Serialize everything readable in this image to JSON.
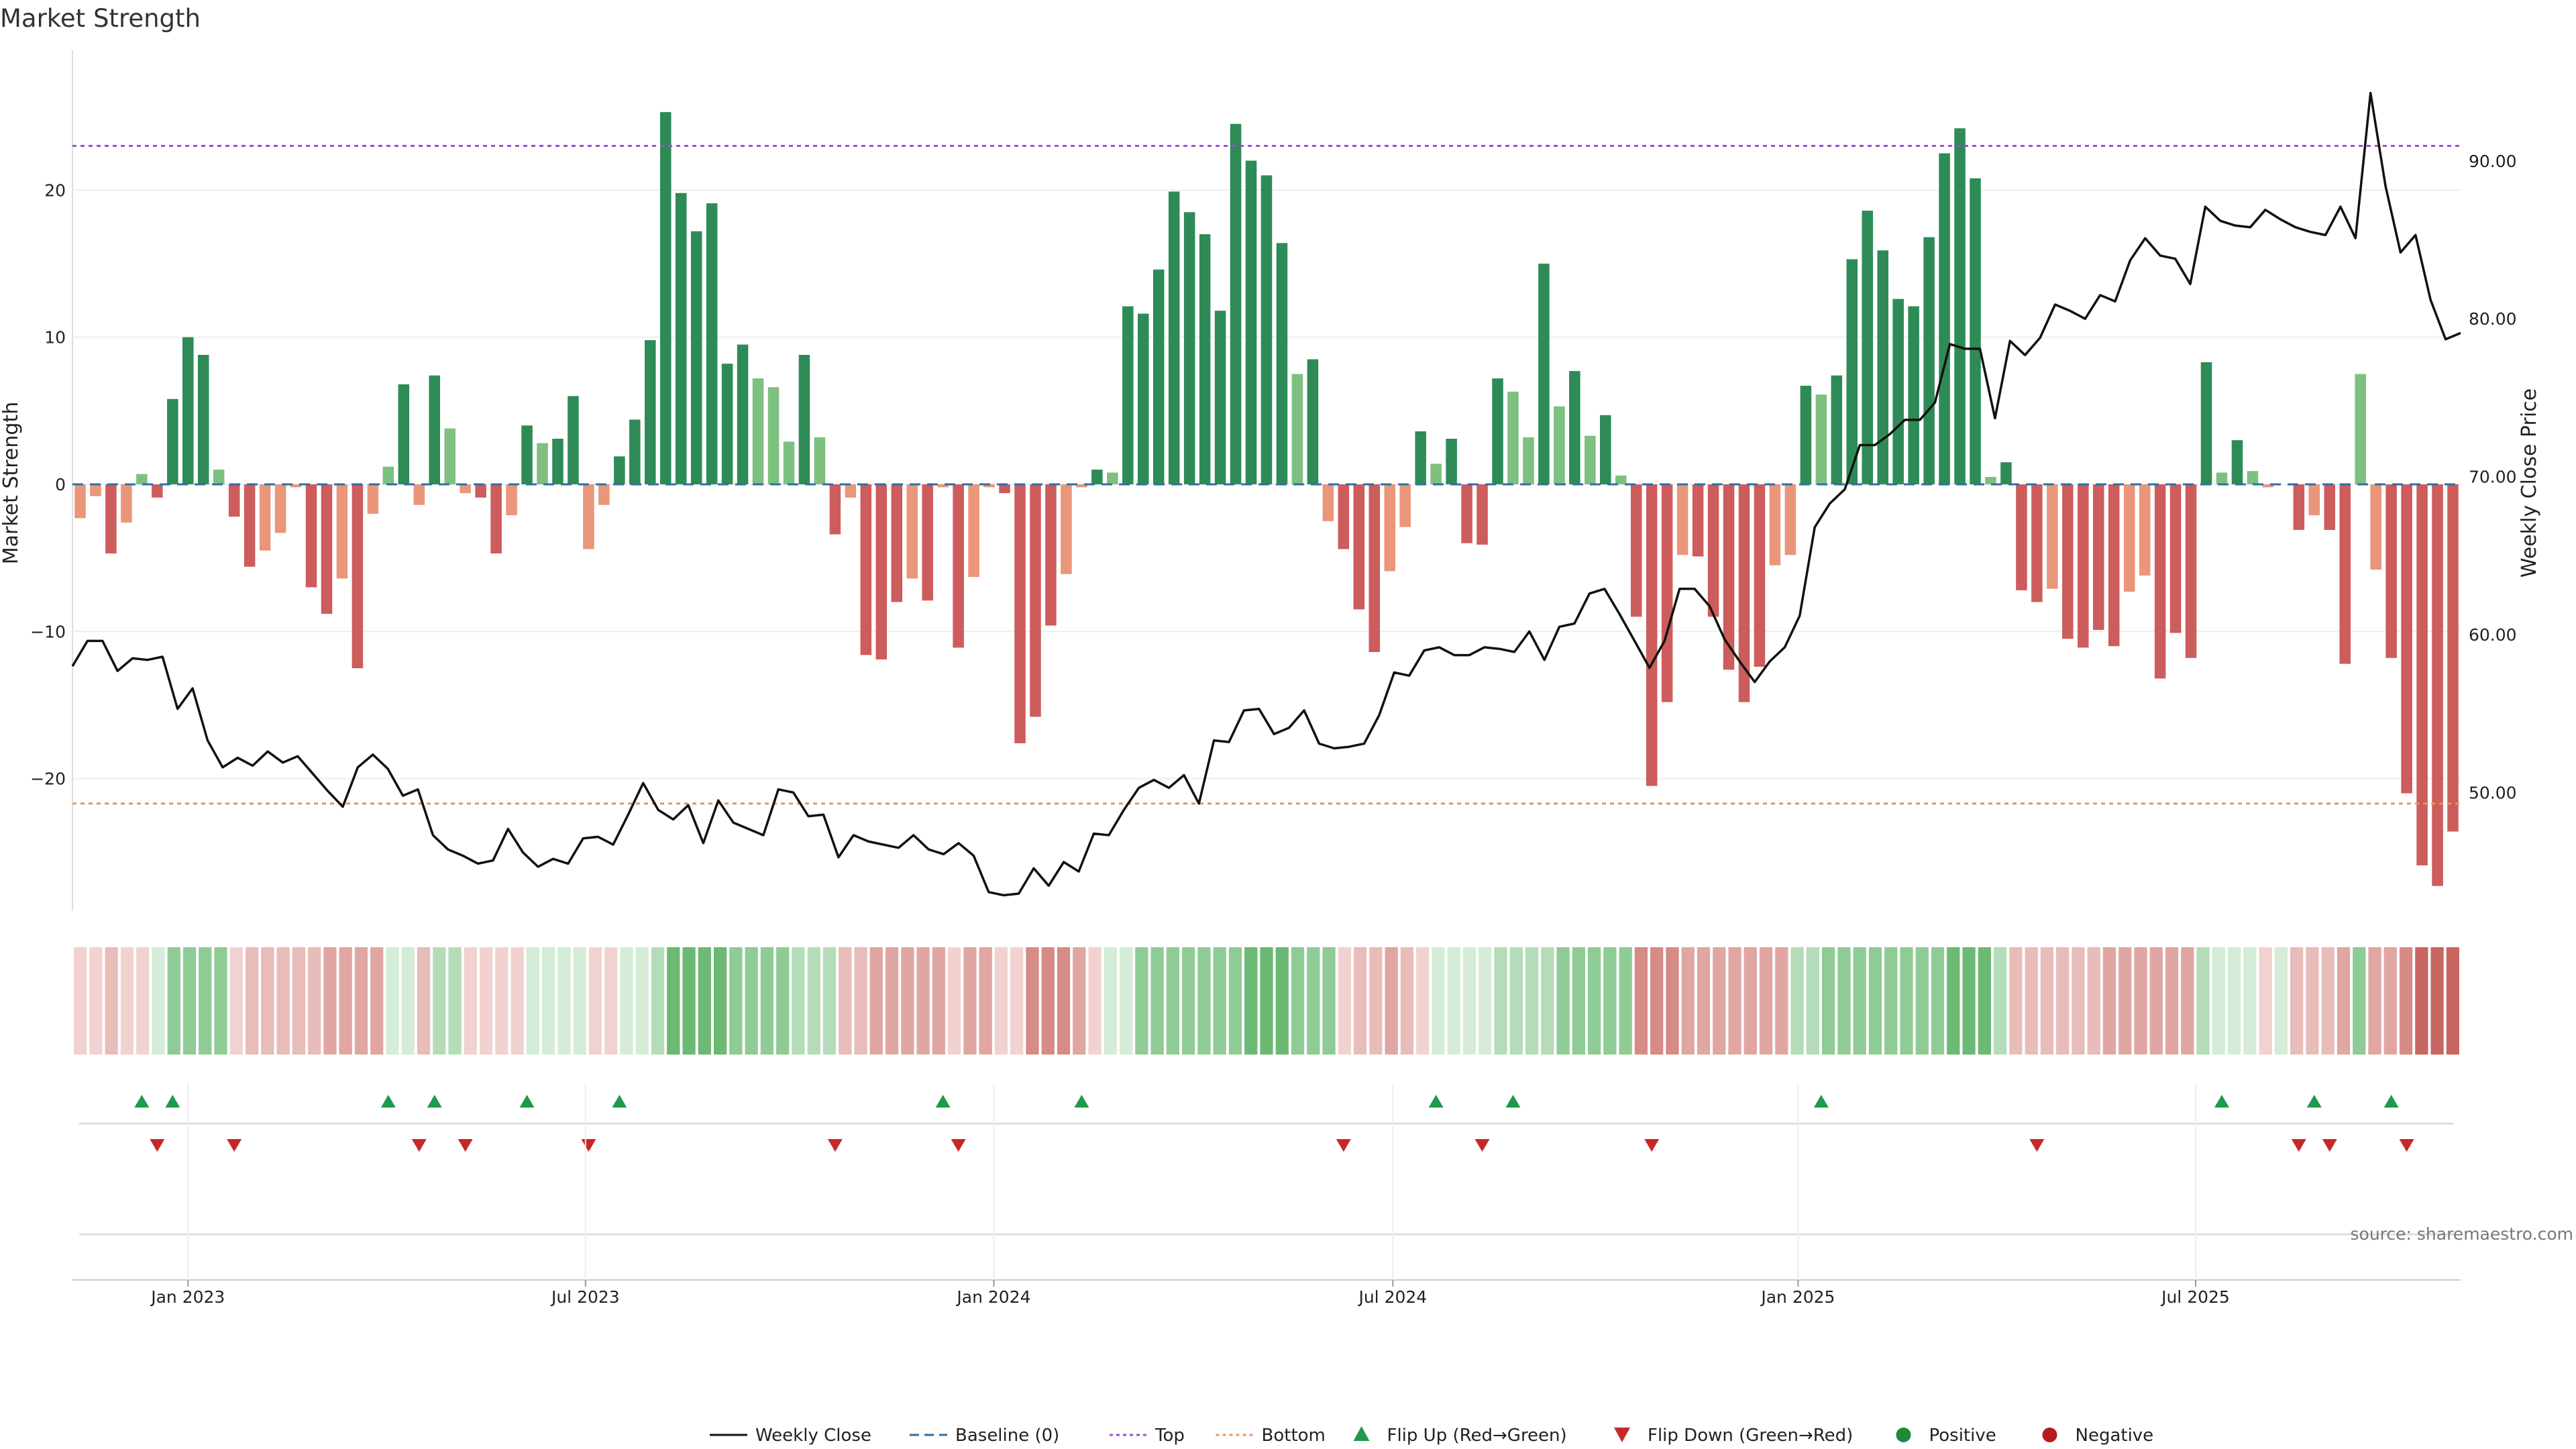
{
  "chart_data": {
    "type": "bar",
    "title": "Market Strength",
    "ylabel": "Market Strength",
    "y2label": "Weekly Close Price",
    "source": "source: sharemaestro.com",
    "ylim": [
      -29,
      29.5
    ],
    "y2lim": [
      42.5,
      97
    ],
    "yticks": [
      -20,
      -10,
      0,
      10,
      20
    ],
    "y2ticks": [
      "50.00",
      "60.00",
      "70.00",
      "80.00",
      "90.00"
    ],
    "y2tick_values": [
      50,
      60,
      70,
      80,
      90
    ],
    "top_line": 23,
    "bottom_line": -21.7,
    "x_tick_labels": [
      "Jan 2023",
      "Jul 2023",
      "Jan 2024",
      "Jul 2024",
      "Jan 2025",
      "Jul 2025"
    ],
    "x_tick_index": [
      7.5,
      33.3,
      59.8,
      85.7,
      112,
      137.8
    ],
    "bar_values": [
      -2.3,
      -0.8,
      -4.7,
      -2.6,
      0.7,
      -0.9,
      5.8,
      10,
      8.8,
      1,
      -2.2,
      -5.6,
      -4.5,
      -3.3,
      -0.2,
      -7,
      -8.8,
      -6.4,
      -12.5,
      -2,
      1.2,
      6.8,
      -1.4,
      7.4,
      3.8,
      -0.6,
      -0.9,
      -4.7,
      -2.1,
      4,
      2.8,
      3.1,
      6,
      -4.4,
      -1.4,
      1.9,
      4.4,
      9.8,
      25.3,
      19.8,
      17.2,
      19.1,
      8.2,
      9.5,
      7.2,
      6.6,
      2.9,
      8.8,
      3.2,
      -3.4,
      -0.9,
      -11.6,
      -11.9,
      -8,
      -6.4,
      -7.9,
      -0.2,
      -11.1,
      -6.3,
      -0.2,
      -0.6,
      -17.6,
      -15.8,
      -9.6,
      -6.1,
      -0.2,
      1,
      0.8,
      12.1,
      11.6,
      14.6,
      19.9,
      18.5,
      17,
      11.8,
      24.5,
      22,
      21,
      16.4,
      7.5,
      8.5,
      -2.5,
      -4.4,
      -8.5,
      -11.4,
      -5.9,
      -2.9,
      3.6,
      1.4,
      3.1,
      -4,
      -4.1,
      7.2,
      6.3,
      3.2,
      15,
      5.3,
      7.7,
      3.3,
      4.7,
      0.6,
      -9,
      -20.5,
      -14.8,
      -4.8,
      -4.9,
      -9,
      -12.6,
      -14.8,
      -12.4,
      -5.5,
      -4.8,
      6.7,
      6.1,
      7.4,
      15.3,
      18.6,
      15.9,
      12.6,
      12.1,
      16.8,
      22.5,
      24.2,
      20.8,
      0.5,
      1.5,
      -7.2,
      -8,
      -7.1,
      -10.5,
      -11.1,
      -9.9,
      -11,
      -7.3,
      -6.2,
      -13.2,
      -10.1,
      -11.8,
      8.3,
      0.8,
      3,
      0.9,
      -0.2,
      0,
      -3.1,
      -2.1,
      -3.1,
      -12.2,
      7.5,
      -5.8,
      -11.8,
      -21,
      -25.9,
      -27.3,
      -23.6
    ],
    "series": [
      {
        "name": "Weekly Close",
        "values": [
          58,
          59.6,
          59.6,
          57.7,
          58.5,
          58.4,
          58.6,
          55.3,
          56.6,
          53.3,
          51.6,
          52.2,
          51.7,
          52.6,
          51.9,
          52.3,
          51.2,
          50.1,
          49.1,
          51.6,
          52.4,
          51.5,
          49.8,
          50.2,
          47.3,
          46.4,
          46,
          45.5,
          45.7,
          47.7,
          46.2,
          45.3,
          45.8,
          45.5,
          47.1,
          47.2,
          46.7,
          48.6,
          50.6,
          48.9,
          48.3,
          49.2,
          46.8,
          49.5,
          48.1,
          47.7,
          47.3,
          50.2,
          50,
          48.5,
          48.6,
          45.9,
          47.3,
          46.9,
          46.7,
          46.5,
          47.3,
          46.4,
          46.1,
          46.8,
          46,
          43.7,
          43.5,
          43.6,
          45.2,
          44.1,
          45.6,
          45,
          47.4,
          47.3,
          48.9,
          50.3,
          50.8,
          50.3,
          51.1,
          49.3,
          53.3,
          53.2,
          55.2,
          55.3,
          53.7,
          54.1,
          55.2,
          53.1,
          52.8,
          52.9,
          53.1,
          54.9,
          57.6,
          57.4,
          59,
          59.2,
          58.7,
          58.7,
          59.2,
          59.1,
          58.9,
          60.2,
          58.4,
          60.5,
          60.7,
          62.6,
          62.9,
          61.3,
          59.6,
          57.9,
          59.6,
          62.9,
          62.9,
          61.8,
          59.7,
          58.3,
          57,
          58.3,
          59.2,
          61.2,
          66.8,
          68.3,
          69.2,
          72,
          72,
          72.7,
          73.6,
          73.6,
          74.7,
          78.4,
          78.1,
          78.1,
          73.7,
          78.6,
          77.7,
          78.8,
          80.9,
          80.5,
          80,
          81.5,
          81.1,
          83.7,
          85.1,
          84,
          83.8,
          82.2,
          87.1,
          86.2,
          85.9,
          85.8,
          86.9,
          86.3,
          85.8,
          85.5,
          85.3,
          87.1,
          85.1,
          94.3,
          88.4,
          84.2,
          85.3,
          81.2,
          78.7,
          79.1
        ]
      },
      {
        "name": "Baseline (0)",
        "values": [
          0
        ]
      },
      {
        "name": "Top",
        "values": [
          23
        ]
      },
      {
        "name": "Bottom",
        "values": [
          -21.7
        ]
      }
    ],
    "heat_strip": {
      "type": "heatmap",
      "values": [
        -1,
        -1,
        -2,
        -1,
        -1,
        1,
        3,
        3,
        3,
        3,
        -1,
        -2,
        -2,
        -2,
        -2,
        -2,
        -3,
        -3,
        -3,
        -3,
        1,
        1,
        -2,
        2,
        2,
        -1,
        -1,
        -1,
        -1,
        1,
        1,
        1,
        1,
        -1,
        -1,
        1,
        1,
        2,
        4,
        4,
        4,
        4,
        3,
        3,
        3,
        3,
        2,
        2,
        2,
        -2,
        -2,
        -3,
        -3,
        -3,
        -3,
        -3,
        -1,
        -3,
        -3,
        -1,
        -1,
        -4,
        -4,
        -4,
        -3,
        -1,
        1,
        1,
        3,
        3,
        3,
        3,
        3,
        3,
        3,
        4,
        4,
        4,
        3,
        3,
        3,
        -1,
        -2,
        -2,
        -3,
        -2,
        -1,
        1,
        1,
        1,
        1,
        2,
        2,
        2,
        2,
        3,
        3,
        3,
        3,
        3,
        -4,
        -4,
        -4,
        -3,
        -3,
        -3,
        -3,
        -3,
        -3,
        -3,
        2,
        2,
        3,
        3,
        3,
        3,
        3,
        3,
        3,
        3,
        4,
        4,
        4,
        2,
        -2,
        -2,
        -2,
        -2,
        -2,
        -2,
        -3,
        -3,
        -3,
        -3,
        -3,
        -3,
        2,
        1,
        1,
        1,
        -1,
        1,
        -2,
        -2,
        -2,
        -3,
        3,
        -3,
        -3,
        -4,
        -5,
        -5,
        -5
      ]
    },
    "flip_up_index": [
      4,
      6,
      20,
      23,
      29,
      35,
      56,
      65,
      88,
      93,
      113,
      139,
      145,
      150
    ],
    "flip_down_index": [
      5,
      10,
      22,
      25,
      33,
      49,
      57,
      82,
      91,
      102,
      127,
      144,
      146,
      151
    ],
    "legend": [
      {
        "label": "Weekly Close",
        "kind": "solid-line",
        "color": "#111111"
      },
      {
        "label": "Baseline (0)",
        "kind": "dashed-line",
        "color": "#2f6f9f"
      },
      {
        "label": "Top",
        "kind": "dotted-line",
        "color": "#9b4fcf"
      },
      {
        "label": "Bottom",
        "kind": "dotted-line",
        "color": "#e8955f"
      },
      {
        "label": "Flip Up (Red→Green)",
        "kind": "triangle-up",
        "color": "#1e9a4a"
      },
      {
        "label": "Flip Down (Green→Red)",
        "kind": "triangle-down",
        "color": "#c62828"
      },
      {
        "label": "Positive",
        "kind": "dot",
        "color": "#1e8a3a"
      },
      {
        "label": "Negative",
        "kind": "dot",
        "color": "#b71c1c"
      }
    ],
    "colors": {
      "strong_positive": "#2e8b57",
      "weak_positive": "#7dc07f",
      "strong_negative": "#cd5c5c",
      "weak_negative": "#e9967a",
      "price_line": "#111111",
      "grid": "#eeeeee"
    }
  }
}
